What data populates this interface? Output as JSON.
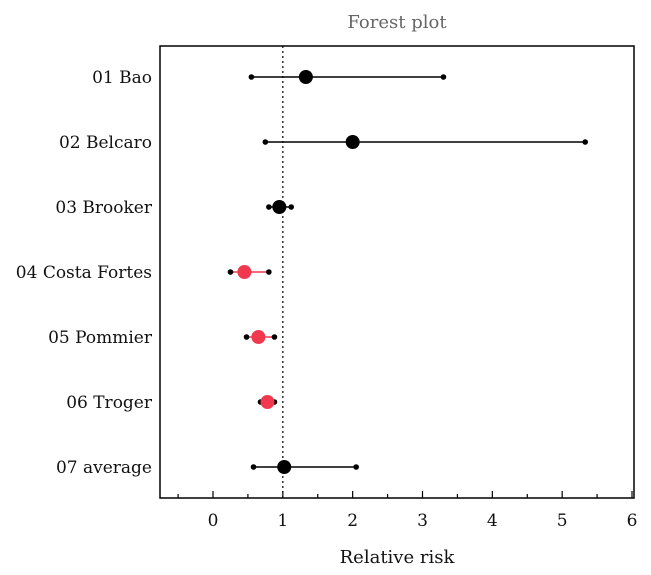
{
  "chart_data": {
    "type": "scatter",
    "subtype": "forest-plot",
    "title": "Forest plot",
    "xlabel": "Relative risk",
    "ylabel": "",
    "xlim": [
      -0.75,
      6
    ],
    "x_ticks": [
      0,
      1,
      2,
      3,
      4,
      5,
      6
    ],
    "reference_line": 1,
    "grid": false,
    "colors": {
      "default": "#000000",
      "highlight": "#f0394f"
    },
    "studies": [
      {
        "name": "01 Bao",
        "estimate": 1.33,
        "lower": 0.55,
        "upper": 3.3,
        "weight": "large",
        "highlight": false
      },
      {
        "name": "02 Belcaro",
        "estimate": 2.0,
        "lower": 0.75,
        "upper": 5.33,
        "weight": "large",
        "highlight": false
      },
      {
        "name": "03 Brooker",
        "estimate": 0.95,
        "lower": 0.8,
        "upper": 1.12,
        "weight": "large",
        "highlight": false
      },
      {
        "name": "04 Costa Fortes",
        "estimate": 0.45,
        "lower": 0.25,
        "upper": 0.8,
        "weight": "large",
        "highlight": true
      },
      {
        "name": "05 Pommier",
        "estimate": 0.65,
        "lower": 0.48,
        "upper": 0.88,
        "weight": "large",
        "highlight": true
      },
      {
        "name": "06 Troger",
        "estimate": 0.78,
        "lower": 0.68,
        "upper": 0.88,
        "weight": "large",
        "highlight": true
      },
      {
        "name": "07 average",
        "estimate": 1.02,
        "lower": 0.58,
        "upper": 2.05,
        "weight": "large",
        "highlight": false
      }
    ]
  }
}
